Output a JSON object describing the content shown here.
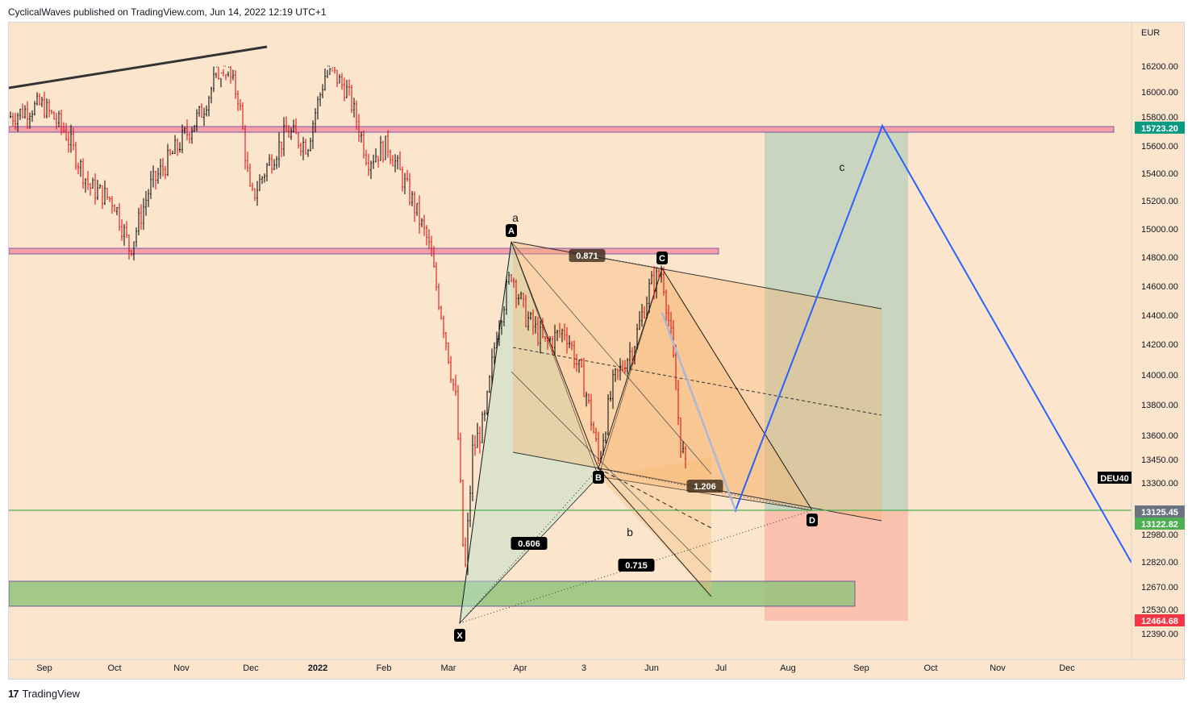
{
  "header": {
    "publisher_text": "CyclicalWaves published on TradingView.com, Jun 14, 2022 12:19 UTC+1"
  },
  "footer": {
    "brand_icon": "tradingview-logo-icon",
    "brand_label": "TradingView",
    "brand_mark": "17"
  },
  "chart_data": {
    "type": "candlestick",
    "symbol": "DEU40",
    "currency": "EUR",
    "y_ticks": [
      16200,
      16000,
      15800,
      15600,
      15400,
      15200,
      15000,
      14800,
      14600,
      14400,
      14200,
      14000,
      13800,
      13600,
      13450,
      13300,
      12980,
      12820,
      12670,
      12530,
      12390
    ],
    "y_tick_labels": [
      "16200.00",
      "16000.00",
      "15800.00",
      "15600.00",
      "15400.00",
      "15200.00",
      "15000.00",
      "14800.00",
      "14600.00",
      "14400.00",
      "14200.00",
      "14000.00",
      "13800.00",
      "13600.00",
      "13450.00",
      "13300.00",
      "12980.00",
      "12820.00",
      "12670.00",
      "12530.00",
      "12390.00"
    ],
    "x_ticks": [
      "Sep",
      "Oct",
      "Nov",
      "Dec",
      "2022",
      "Feb",
      "Mar",
      "Apr",
      "3",
      "Jun",
      "Jul",
      "Aug",
      "Sep",
      "Oct",
      "Nov",
      "Dec"
    ],
    "price_tags": [
      {
        "label": "15723.20",
        "value": 15723.2,
        "color": "#089981"
      },
      {
        "label": "13125.45",
        "value": 13125.45,
        "color": "#6b7280"
      },
      {
        "label": "13122.82",
        "value": 13122.82,
        "color": "#4caf50"
      },
      {
        "label": "12464.68",
        "value": 12464.68,
        "color": "#f23645"
      }
    ],
    "pattern_points": [
      {
        "label": "X",
        "value": 12400
      },
      {
        "label": "A",
        "value": 14870
      },
      {
        "label": "B",
        "value": 13410
      },
      {
        "label": "C",
        "value": 14720
      },
      {
        "label": "D",
        "value": 13130
      }
    ],
    "ratios": [
      "0.871",
      "1.206",
      "0.606",
      "0.715"
    ],
    "wave_labels": [
      "a",
      "b",
      "c"
    ],
    "zones": [
      {
        "name": "resistance-upper",
        "value": 15723.2
      },
      {
        "name": "resistance-lower",
        "value": 14840
      },
      {
        "name": "support-green",
        "low": 12560,
        "high": 12700
      }
    ],
    "colors": {
      "background": "#fce5cd",
      "up_candle": "#000000",
      "down_candle": "#e00000",
      "projection": "#2962ff",
      "support_line": "#4caf50",
      "resistance_fill": "#f4a0a8"
    }
  }
}
